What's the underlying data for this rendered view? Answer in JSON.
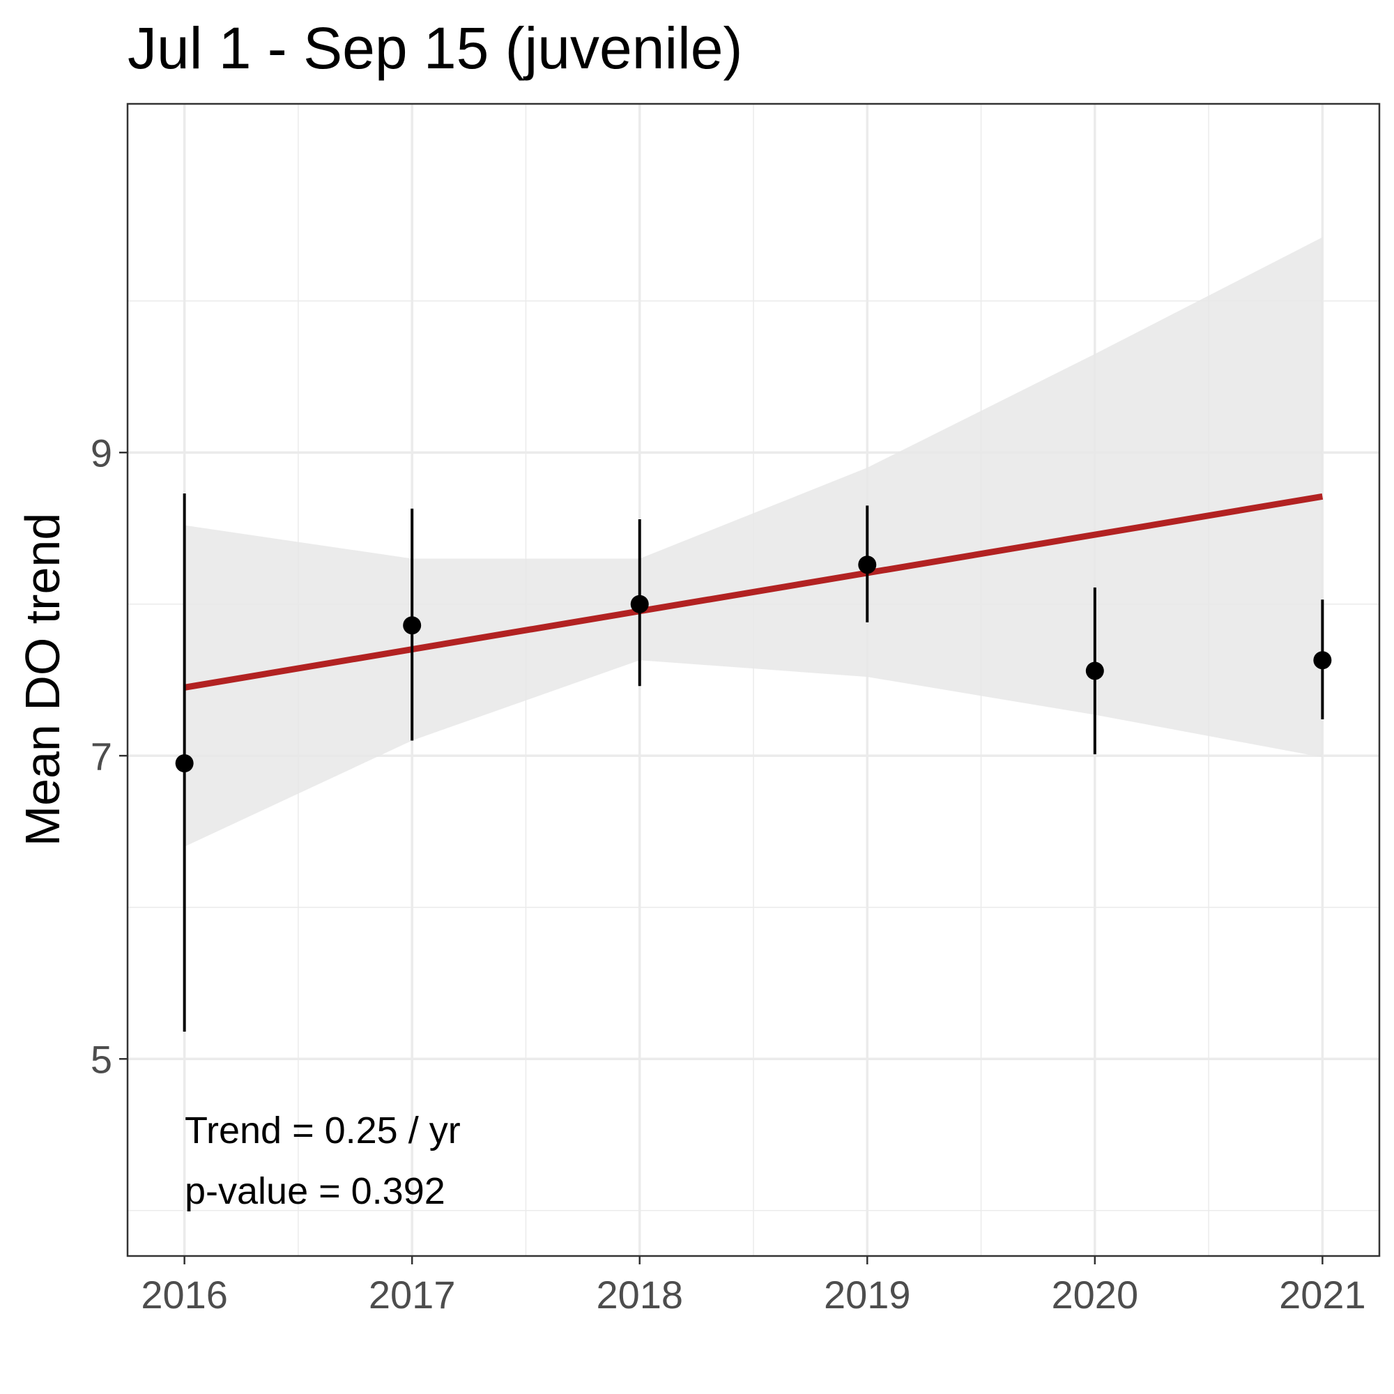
{
  "chart_data": {
    "type": "scatter",
    "title": "Jul 1 - Sep 15 (juvenile)",
    "xlabel": "",
    "ylabel": "Mean DO trend",
    "xlim": [
      2015.75,
      2021.25
    ],
    "ylim": [
      3.7,
      11.3
    ],
    "x_ticks": [
      2016,
      2017,
      2018,
      2019,
      2020,
      2021
    ],
    "y_ticks": [
      5,
      7,
      9
    ],
    "y_minor": [
      4,
      6,
      8,
      10
    ],
    "grid": true,
    "points": [
      {
        "x": 2016,
        "y": 6.95,
        "lo": 5.18,
        "hi": 8.73
      },
      {
        "x": 2017,
        "y": 7.86,
        "lo": 7.1,
        "hi": 8.63
      },
      {
        "x": 2018,
        "y": 8.0,
        "lo": 7.46,
        "hi": 8.56
      },
      {
        "x": 2019,
        "y": 8.26,
        "lo": 7.88,
        "hi": 8.65
      },
      {
        "x": 2020,
        "y": 7.56,
        "lo": 7.01,
        "hi": 8.11
      },
      {
        "x": 2021,
        "y": 7.63,
        "lo": 7.24,
        "hi": 8.03
      }
    ],
    "trend_line": {
      "x": [
        2016,
        2021
      ],
      "y": [
        7.45,
        8.71
      ]
    },
    "confidence_band": {
      "x": [
        2016,
        2017,
        2018,
        2019,
        2020,
        2021
      ],
      "lower": [
        6.4,
        7.1,
        7.63,
        7.52,
        7.27,
        6.99
      ],
      "upper": [
        8.52,
        8.3,
        8.3,
        8.9,
        9.65,
        10.42
      ]
    },
    "annotations": [
      "Trend = 0.25 / yr",
      "p-value = 0.392"
    ],
    "colors": {
      "trend": "#b22222",
      "band": "#e8e8e8",
      "points": "#000000",
      "grid": "#ebebeb",
      "border": "#333333"
    }
  }
}
